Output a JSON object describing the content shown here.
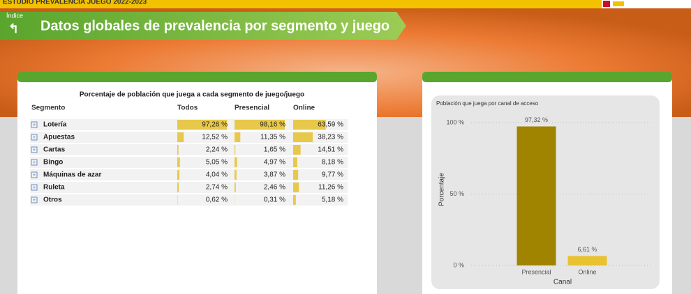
{
  "header": {
    "app_title": "ESTUDIO PREVALENCIA JUEGO 2022-2023",
    "back_label": "Índice",
    "title": "Datos globales de prevalencia por segmento y juego"
  },
  "table": {
    "title": "Porcentaje de población que juega a cada segmento de juego/juego",
    "columns": [
      "Segmento",
      "Todos",
      "Presencial",
      "Online"
    ],
    "rows": [
      {
        "name": "Lotería",
        "values": [
          97.26,
          98.16,
          63.59
        ],
        "value_labels": [
          "97,26 %",
          "98,16 %",
          "63,59 %"
        ]
      },
      {
        "name": "Apuestas",
        "values": [
          12.52,
          11.35,
          38.23
        ],
        "value_labels": [
          "12,52 %",
          "11,35 %",
          "38,23 %"
        ]
      },
      {
        "name": "Cartas",
        "values": [
          2.24,
          1.65,
          14.51
        ],
        "value_labels": [
          "2,24 %",
          "1,65 %",
          "14,51 %"
        ]
      },
      {
        "name": "Bingo",
        "values": [
          5.05,
          4.97,
          8.18
        ],
        "value_labels": [
          "5,05 %",
          "4,97 %",
          "8,18 %"
        ]
      },
      {
        "name": "Máquinas de azar",
        "values": [
          4.04,
          3.87,
          9.77
        ],
        "value_labels": [
          "4,04 %",
          "3,87 %",
          "9,77 %"
        ]
      },
      {
        "name": "Ruleta",
        "values": [
          2.74,
          2.46,
          11.26
        ],
        "value_labels": [
          "2,74 %",
          "2,46 %",
          "11,26 %"
        ]
      },
      {
        "name": "Otros",
        "values": [
          0.62,
          0.31,
          5.18
        ],
        "value_labels": [
          "0,62 %",
          "0,31 %",
          "5,18 %"
        ]
      }
    ],
    "bar_color": "#e8c84a"
  },
  "chart_data": {
    "type": "bar",
    "title": "Población que juega por canal de acceso",
    "x_label": "Canal",
    "y_label": "Porcentaje",
    "categories": [
      "Presencial",
      "Online"
    ],
    "values": [
      97.32,
      6.61
    ],
    "value_labels": [
      "97,32 %",
      "6,61 %"
    ],
    "colors": [
      "#a08400",
      "#e8c230"
    ],
    "ylim": [
      0,
      100
    ],
    "yticks": [
      {
        "value": 0,
        "label": "0 %"
      },
      {
        "value": 50,
        "label": "50 %"
      },
      {
        "value": 100,
        "label": "100 %"
      }
    ],
    "grid": true
  }
}
